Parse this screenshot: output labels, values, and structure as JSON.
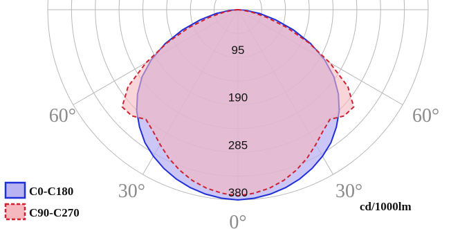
{
  "chart_data": {
    "type": "polar",
    "unit": "cd/1000lm",
    "radial_ticks": [
      95,
      190,
      285,
      380
    ],
    "radial_max": 380,
    "angle_labels": [
      "0°",
      "30°",
      "60°",
      "30°",
      "60°"
    ],
    "angles_deg": [
      0,
      5,
      10,
      15,
      20,
      25,
      30,
      35,
      40,
      45,
      50,
      55,
      60,
      65,
      70,
      75,
      80,
      85,
      90
    ],
    "series": [
      {
        "name": "C0-C180",
        "color": "#1e2fd8",
        "fill": "#b9b3f2",
        "line": "solid",
        "values": [
          380,
          378,
          374,
          368,
          360,
          350,
          338,
          324,
          306,
          286,
          262,
          234,
          200,
          160,
          118,
          78,
          44,
          16,
          0
        ]
      },
      {
        "name": "C90-C270",
        "color": "#d0202f",
        "fill": "#f5b8be",
        "line": "dashed",
        "values": [
          372,
          368,
          362,
          353,
          341,
          327,
          311,
          296,
          286,
          300,
          302,
          268,
          212,
          156,
          104,
          60,
          28,
          8,
          0
        ]
      }
    ]
  }
}
